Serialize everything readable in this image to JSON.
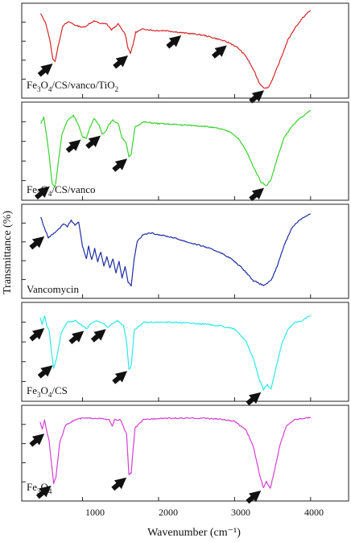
{
  "chart_data": {
    "type": "line",
    "xlabel": "Wavenumber (cm⁻¹)",
    "ylabel": "Transmittance (%)",
    "xlim": [
      200,
      4500
    ],
    "x_ticks": [
      "1000",
      "2000",
      "3000",
      "4000"
    ],
    "grid": false,
    "series": [
      {
        "name": "Fe3O4/CS/vanco/TiO2",
        "color": "#d62728",
        "points": [
          [
            450,
            0.95
          ],
          [
            520,
            0.82
          ],
          [
            570,
            0.62
          ],
          [
            610,
            0.38
          ],
          [
            640,
            0.36
          ],
          [
            680,
            0.55
          ],
          [
            740,
            0.8
          ],
          [
            820,
            0.85
          ],
          [
            920,
            0.8
          ],
          [
            1020,
            0.78
          ],
          [
            1080,
            0.82
          ],
          [
            1150,
            0.86
          ],
          [
            1230,
            0.83
          ],
          [
            1320,
            0.82
          ],
          [
            1380,
            0.75
          ],
          [
            1420,
            0.78
          ],
          [
            1470,
            0.82
          ],
          [
            1520,
            0.75
          ],
          [
            1560,
            0.7
          ],
          [
            1600,
            0.52
          ],
          [
            1630,
            0.46
          ],
          [
            1660,
            0.55
          ],
          [
            1700,
            0.72
          ],
          [
            1800,
            0.76
          ],
          [
            1950,
            0.74
          ],
          [
            2100,
            0.74
          ],
          [
            2250,
            0.72
          ],
          [
            2330,
            0.71
          ],
          [
            2450,
            0.7
          ],
          [
            2600,
            0.68
          ],
          [
            2800,
            0.63
          ],
          [
            2950,
            0.58
          ],
          [
            3050,
            0.52
          ],
          [
            3150,
            0.42
          ],
          [
            3250,
            0.25
          ],
          [
            3330,
            0.08
          ],
          [
            3400,
            0.02
          ],
          [
            3450,
            0.04
          ],
          [
            3520,
            0.18
          ],
          [
            3620,
            0.42
          ],
          [
            3700,
            0.62
          ],
          [
            3800,
            0.78
          ],
          [
            3900,
            0.9
          ],
          [
            3960,
            0.96
          ],
          [
            4000,
            0.99
          ]
        ]
      },
      {
        "name": "Fe3O4/CS/vanco",
        "color": "#39d12e",
        "points": [
          [
            450,
            0.82
          ],
          [
            490,
            0.9
          ],
          [
            520,
            0.72
          ],
          [
            560,
            0.45
          ],
          [
            600,
            0.1
          ],
          [
            640,
            0.06
          ],
          [
            680,
            0.35
          ],
          [
            730,
            0.7
          ],
          [
            800,
            0.85
          ],
          [
            880,
            0.92
          ],
          [
            940,
            0.82
          ],
          [
            1000,
            0.66
          ],
          [
            1050,
            0.65
          ],
          [
            1100,
            0.78
          ],
          [
            1150,
            0.88
          ],
          [
            1220,
            0.8
          ],
          [
            1260,
            0.7
          ],
          [
            1300,
            0.72
          ],
          [
            1340,
            0.8
          ],
          [
            1400,
            0.86
          ],
          [
            1470,
            0.82
          ],
          [
            1520,
            0.65
          ],
          [
            1570,
            0.6
          ],
          [
            1610,
            0.42
          ],
          [
            1640,
            0.45
          ],
          [
            1690,
            0.78
          ],
          [
            1800,
            0.84
          ],
          [
            2000,
            0.82
          ],
          [
            2200,
            0.81
          ],
          [
            2400,
            0.8
          ],
          [
            2600,
            0.79
          ],
          [
            2800,
            0.76
          ],
          [
            2950,
            0.72
          ],
          [
            3050,
            0.64
          ],
          [
            3150,
            0.5
          ],
          [
            3250,
            0.3
          ],
          [
            3350,
            0.12
          ],
          [
            3420,
            0.08
          ],
          [
            3480,
            0.15
          ],
          [
            3560,
            0.4
          ],
          [
            3650,
            0.65
          ],
          [
            3750,
            0.78
          ],
          [
            3850,
            0.88
          ],
          [
            3950,
            0.94
          ],
          [
            4000,
            0.98
          ]
        ]
      },
      {
        "name": "Vancomycin",
        "color": "#1f2ea3",
        "points": [
          [
            450,
            0.92
          ],
          [
            500,
            0.78
          ],
          [
            550,
            0.66
          ],
          [
            600,
            0.7
          ],
          [
            650,
            0.74
          ],
          [
            700,
            0.78
          ],
          [
            750,
            0.84
          ],
          [
            800,
            0.8
          ],
          [
            850,
            0.88
          ],
          [
            900,
            0.82
          ],
          [
            950,
            0.86
          ],
          [
            1000,
            0.55
          ],
          [
            1050,
            0.4
          ],
          [
            1080,
            0.55
          ],
          [
            1120,
            0.38
          ],
          [
            1160,
            0.52
          ],
          [
            1200,
            0.36
          ],
          [
            1240,
            0.48
          ],
          [
            1280,
            0.3
          ],
          [
            1320,
            0.42
          ],
          [
            1360,
            0.28
          ],
          [
            1400,
            0.4
          ],
          [
            1440,
            0.22
          ],
          [
            1480,
            0.36
          ],
          [
            1520,
            0.16
          ],
          [
            1560,
            0.3
          ],
          [
            1600,
            0.1
          ],
          [
            1640,
            0.06
          ],
          [
            1680,
            0.4
          ],
          [
            1720,
            0.62
          ],
          [
            1800,
            0.7
          ],
          [
            1900,
            0.72
          ],
          [
            2000,
            0.7
          ],
          [
            2200,
            0.66
          ],
          [
            2400,
            0.6
          ],
          [
            2600,
            0.55
          ],
          [
            2800,
            0.48
          ],
          [
            2950,
            0.4
          ],
          [
            3100,
            0.28
          ],
          [
            3250,
            0.12
          ],
          [
            3380,
            0.06
          ],
          [
            3480,
            0.12
          ],
          [
            3560,
            0.3
          ],
          [
            3650,
            0.56
          ],
          [
            3750,
            0.78
          ],
          [
            3850,
            0.88
          ],
          [
            3950,
            0.94
          ],
          [
            4000,
            0.96
          ]
        ]
      },
      {
        "name": "Fe3O4/CS",
        "color": "#2ee8e8",
        "points": [
          [
            440,
            0.9
          ],
          [
            470,
            0.82
          ],
          [
            500,
            0.92
          ],
          [
            530,
            0.8
          ],
          [
            560,
            0.75
          ],
          [
            590,
            0.5
          ],
          [
            620,
            0.3
          ],
          [
            660,
            0.42
          ],
          [
            720,
            0.72
          ],
          [
            800,
            0.84
          ],
          [
            900,
            0.86
          ],
          [
            1000,
            0.8
          ],
          [
            1060,
            0.76
          ],
          [
            1100,
            0.82
          ],
          [
            1180,
            0.86
          ],
          [
            1280,
            0.82
          ],
          [
            1330,
            0.78
          ],
          [
            1380,
            0.82
          ],
          [
            1460,
            0.86
          ],
          [
            1540,
            0.8
          ],
          [
            1580,
            0.6
          ],
          [
            1610,
            0.28
          ],
          [
            1640,
            0.32
          ],
          [
            1680,
            0.74
          ],
          [
            1800,
            0.84
          ],
          [
            2000,
            0.84
          ],
          [
            2200,
            0.84
          ],
          [
            2400,
            0.83
          ],
          [
            2600,
            0.82
          ],
          [
            2800,
            0.8
          ],
          [
            3000,
            0.76
          ],
          [
            3150,
            0.62
          ],
          [
            3250,
            0.4
          ],
          [
            3330,
            0.15
          ],
          [
            3380,
            0.04
          ],
          [
            3430,
            0.1
          ],
          [
            3480,
            0.05
          ],
          [
            3540,
            0.28
          ],
          [
            3620,
            0.58
          ],
          [
            3700,
            0.76
          ],
          [
            3800,
            0.84
          ],
          [
            3900,
            0.86
          ],
          [
            3950,
            0.9
          ],
          [
            4000,
            0.92
          ]
        ]
      },
      {
        "name": "Fe3O4",
        "color": "#d43fd4",
        "points": [
          [
            440,
            0.88
          ],
          [
            470,
            0.78
          ],
          [
            500,
            0.9
          ],
          [
            530,
            0.76
          ],
          [
            560,
            0.64
          ],
          [
            590,
            0.38
          ],
          [
            620,
            0.12
          ],
          [
            650,
            0.2
          ],
          [
            700,
            0.62
          ],
          [
            780,
            0.84
          ],
          [
            900,
            0.9
          ],
          [
            1000,
            0.92
          ],
          [
            1200,
            0.92
          ],
          [
            1350,
            0.9
          ],
          [
            1390,
            0.82
          ],
          [
            1420,
            0.9
          ],
          [
            1500,
            0.9
          ],
          [
            1580,
            0.72
          ],
          [
            1610,
            0.22
          ],
          [
            1640,
            0.25
          ],
          [
            1690,
            0.8
          ],
          [
            1800,
            0.9
          ],
          [
            2000,
            0.92
          ],
          [
            2200,
            0.92
          ],
          [
            2400,
            0.92
          ],
          [
            2600,
            0.92
          ],
          [
            2800,
            0.91
          ],
          [
            3000,
            0.88
          ],
          [
            3150,
            0.78
          ],
          [
            3250,
            0.56
          ],
          [
            3330,
            0.22
          ],
          [
            3380,
            0.06
          ],
          [
            3420,
            0.14
          ],
          [
            3470,
            0.05
          ],
          [
            3530,
            0.3
          ],
          [
            3600,
            0.6
          ],
          [
            3680,
            0.82
          ],
          [
            3780,
            0.9
          ],
          [
            3900,
            0.92
          ],
          [
            4000,
            0.93
          ]
        ]
      }
    ],
    "annotations": {
      "arrows": [
        [
          640,
          3420,
          1630,
          2330,
          2930
        ],
        [
          600,
          1010,
          1270,
          1620,
          3420
        ],
        [
          530
        ],
        [
          530,
          640,
          1050,
          1340,
          1620,
          3380
        ],
        [
          530,
          620,
          1610,
          3380
        ]
      ]
    }
  },
  "panels": {
    "0": {
      "label_main": "Fe",
      "sub1": "3",
      "mid": "O",
      "sub2": "4",
      "tail": "/CS/vanco/TiO",
      "sub3": "2"
    },
    "1": {
      "label_main": "Fe",
      "sub1": "3",
      "mid": "O",
      "sub2": "4",
      "tail": "/CS/vanco",
      "sub3": ""
    },
    "2": {
      "label_main": "Vancomycin",
      "sub1": "",
      "mid": "",
      "sub2": "",
      "tail": "",
      "sub3": ""
    },
    "3": {
      "label_main": "Fe",
      "sub1": "3",
      "mid": "O",
      "sub2": "4",
      "tail": "/CS",
      "sub3": ""
    },
    "4": {
      "label_main": "Fe",
      "sub1": "3",
      "mid": "O",
      "sub2": "4",
      "tail": "",
      "sub3": ""
    }
  }
}
